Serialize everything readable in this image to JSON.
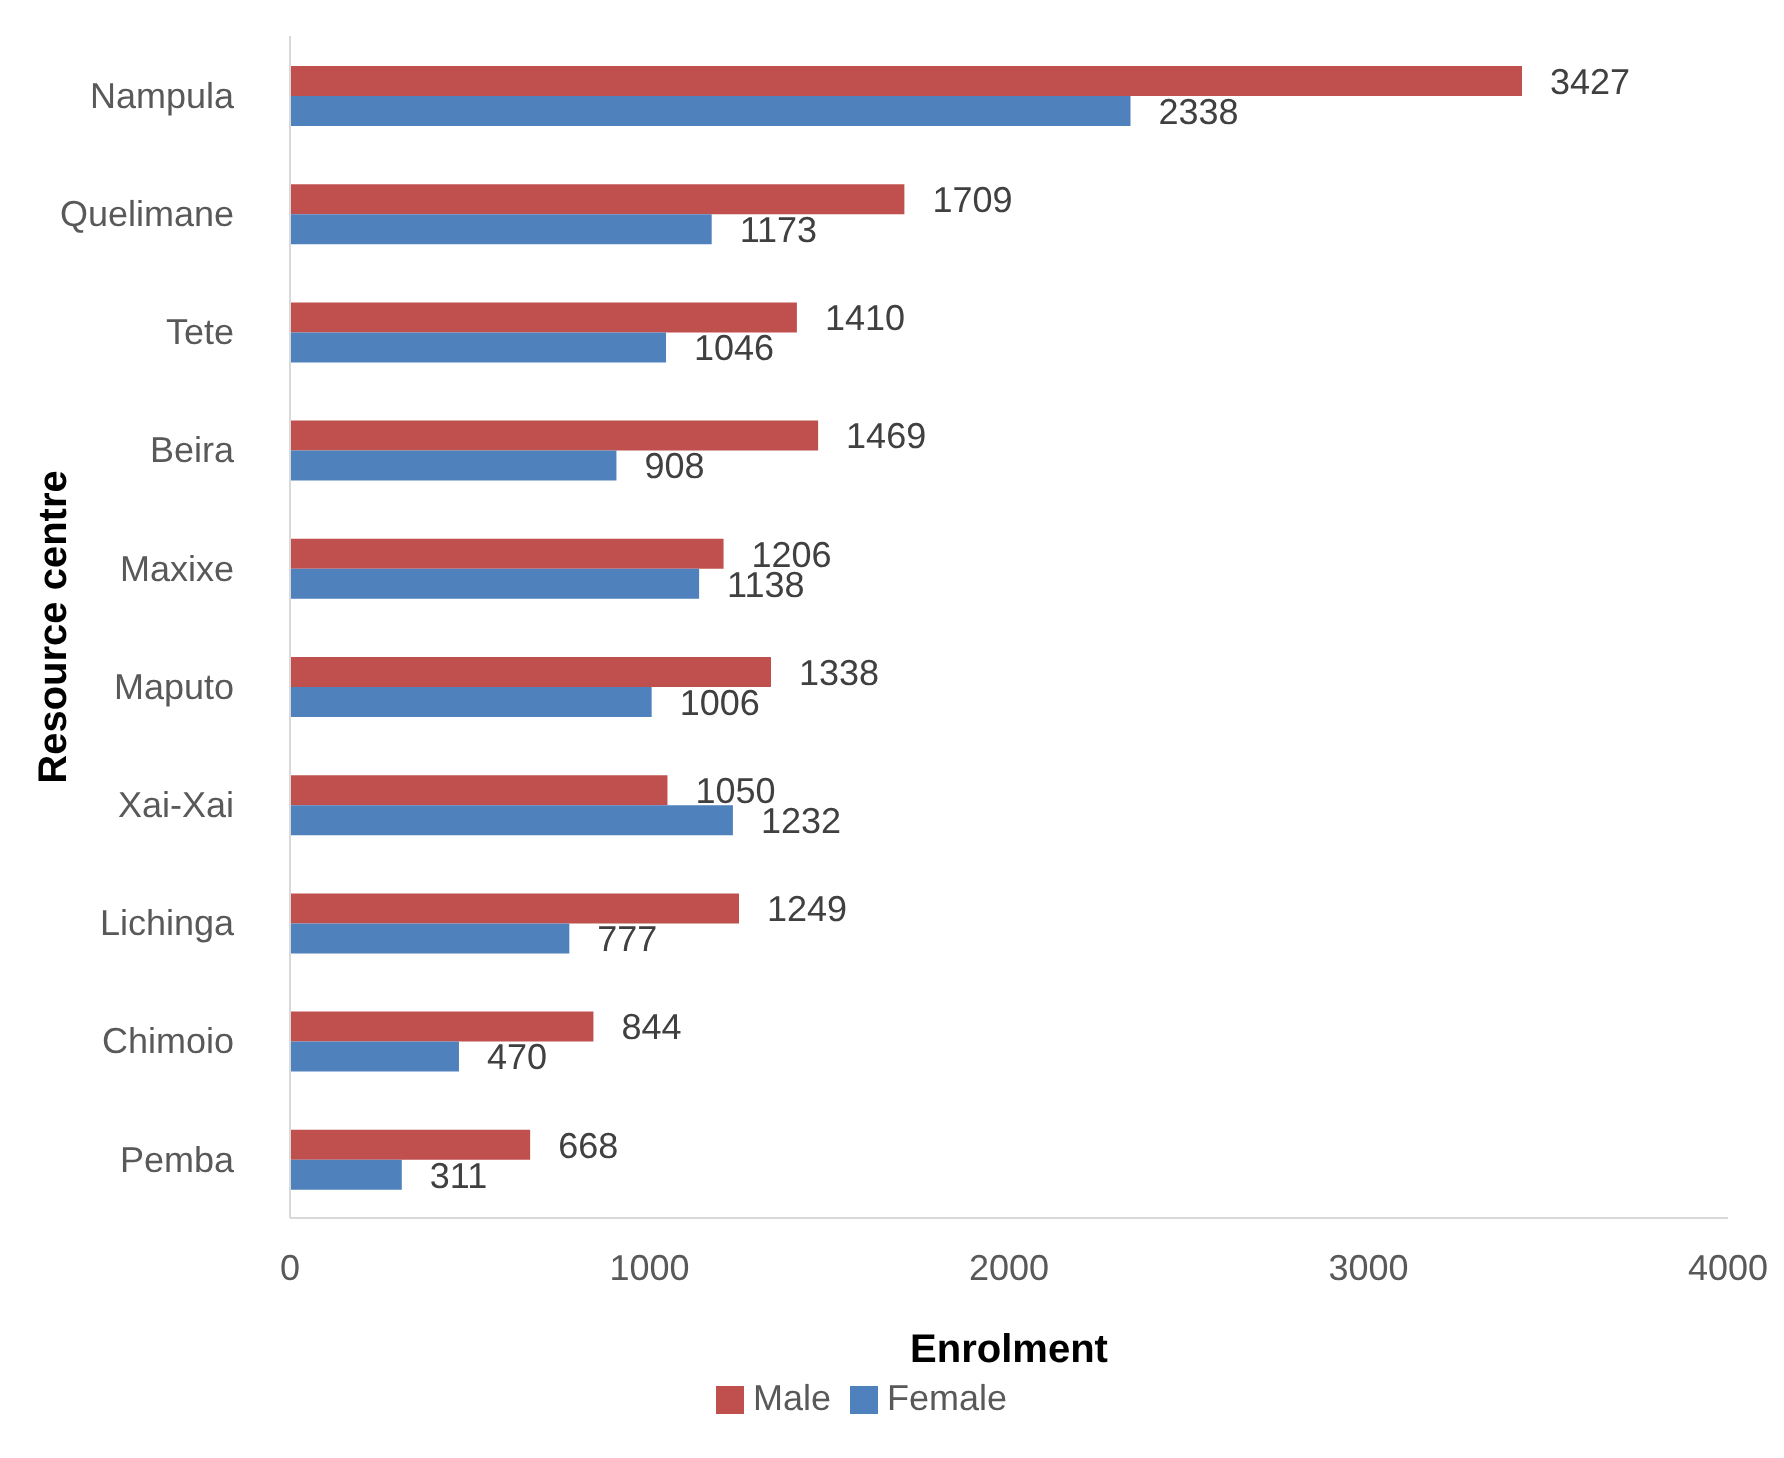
{
  "chart_data": {
    "type": "bar",
    "orientation": "horizontal",
    "xlabel": "Enrolment",
    "ylabel": "Resource centre",
    "categories": [
      "Nampula",
      "Quelimane",
      "Tete",
      "Beira",
      "Maxixe",
      "Maputo",
      "Xai-Xai",
      "Lichinga",
      "Chimoio",
      "Pemba"
    ],
    "series": [
      {
        "name": "Male",
        "color": "#c0504d",
        "values": [
          3427,
          1709,
          1410,
          1469,
          1206,
          1338,
          1050,
          1249,
          844,
          668
        ]
      },
      {
        "name": "Female",
        "color": "#4f81bd",
        "values": [
          2338,
          1173,
          1046,
          908,
          1138,
          1006,
          1232,
          777,
          470,
          311
        ]
      }
    ],
    "xlim": [
      0,
      4000
    ],
    "xticks": [
      0,
      1000,
      2000,
      3000,
      4000
    ],
    "data_labels": true,
    "legend": "bottom"
  }
}
